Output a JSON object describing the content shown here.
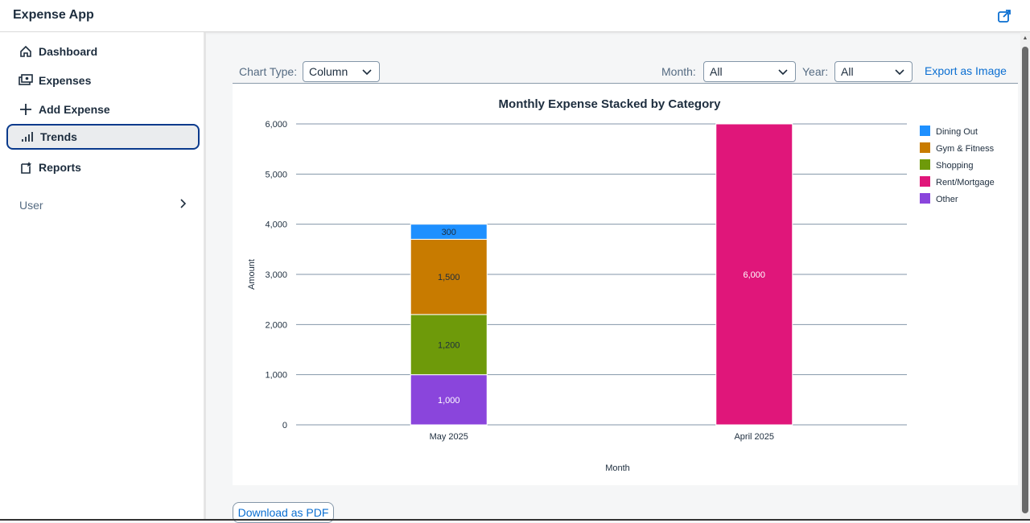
{
  "app": {
    "title": "Expense App",
    "share_icon": "external-link-icon"
  },
  "sidebar": {
    "items": [
      {
        "label": "Dashboard",
        "icon": "home-icon",
        "selected": false
      },
      {
        "label": "Expenses",
        "icon": "money-bills-icon",
        "selected": false
      },
      {
        "label": "Add Expense",
        "icon": "add-icon",
        "selected": false
      },
      {
        "label": "Trends",
        "icon": "bar-chart-icon",
        "selected": true
      },
      {
        "label": "Reports",
        "icon": "report-icon",
        "selected": false
      }
    ],
    "user": {
      "label": "User",
      "icon": "chevron-right-icon"
    }
  },
  "toolbar": {
    "chart_type_label": "Chart Type:",
    "chart_type_value": "Column",
    "month_label": "Month:",
    "month_value": "All",
    "year_label": "Year:",
    "year_value": "All",
    "export_label": "Export as Image"
  },
  "download_pdf_label": "Download as PDF",
  "colors": {
    "accent": "#0a6ed1",
    "dining_out": "#1e90ff",
    "gym_fitness": "#c87b00",
    "shopping": "#6e9a0a",
    "rent_mortgage": "#e0167a",
    "other": "#8a45dc"
  },
  "chart_data": {
    "type": "bar",
    "stacked": true,
    "title": "Monthly Expense Stacked by Category",
    "xlabel": "Month",
    "ylabel": "Amount",
    "ylim": [
      0,
      6000
    ],
    "yticks": [
      "0",
      "1,000",
      "2,000",
      "3,000",
      "4,000",
      "5,000",
      "6,000"
    ],
    "categories": [
      "May 2025",
      "April 2025"
    ],
    "series": [
      {
        "name": "Other",
        "color": "#8a45dc",
        "values": [
          1000,
          0
        ],
        "labels": [
          "1,000",
          ""
        ]
      },
      {
        "name": "Shopping",
        "color": "#6e9a0a",
        "values": [
          1200,
          0
        ],
        "labels": [
          "1,200",
          ""
        ]
      },
      {
        "name": "Gym & Fitness",
        "color": "#c87b00",
        "values": [
          1500,
          0
        ],
        "labels": [
          "1,500",
          ""
        ]
      },
      {
        "name": "Dining Out",
        "color": "#1e90ff",
        "values": [
          300,
          0
        ],
        "labels": [
          "300",
          ""
        ]
      },
      {
        "name": "Rent/Mortgage",
        "color": "#e0167a",
        "values": [
          0,
          6000
        ],
        "labels": [
          "",
          "6,000"
        ]
      }
    ],
    "legend": [
      "Dining Out",
      "Gym & Fitness",
      "Shopping",
      "Rent/Mortgage",
      "Other"
    ],
    "legend_position": "right",
    "grid": true
  }
}
